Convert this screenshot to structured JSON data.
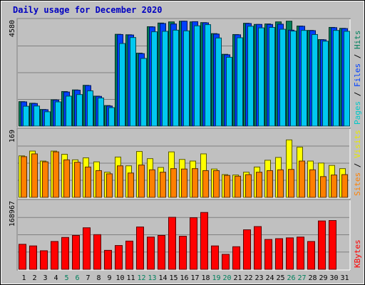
{
  "chart_data": {
    "type": "bar",
    "title": "Daily usage for December 2020",
    "categories": [
      "1",
      "2",
      "3",
      "4",
      "5",
      "6",
      "7",
      "8",
      "9",
      "10",
      "11",
      "12",
      "13",
      "14",
      "15",
      "16",
      "17",
      "18",
      "19",
      "20",
      "21",
      "22",
      "23",
      "24",
      "25",
      "26",
      "27",
      "28",
      "29",
      "30",
      "31"
    ],
    "weekend_days": [
      "5",
      "6",
      "12",
      "13",
      "19",
      "20",
      "26",
      "27"
    ],
    "panels": [
      {
        "name": "requests",
        "ymax_label": "4580",
        "ymax": 4580,
        "right_label": [
          {
            "text": "Pages",
            "color": "#00c8c8"
          },
          {
            "text": " / ",
            "color": "#000000"
          },
          {
            "text": "Files",
            "color": "#0040ff"
          },
          {
            "text": " / ",
            "color": "#000000"
          },
          {
            "text": "Hits",
            "color": "#00805c"
          }
        ],
        "series": [
          {
            "name": "Hits",
            "color": "#00805c",
            "values": [
              1080,
              1010,
              740,
              1160,
              1520,
              1590,
              1790,
              1320,
              910,
              4010,
              3990,
              3190,
              4340,
              4500,
              4550,
              4580,
              4550,
              4520,
              4040,
              3140,
              4000,
              4490,
              4440,
              4460,
              4550,
              4580,
              4370,
              4180,
              3780,
              4310,
              4270
            ]
          },
          {
            "name": "Files",
            "color": "#0040ff",
            "values": [
              1070,
              1000,
              730,
              1150,
              1500,
              1580,
              1780,
              1310,
              890,
              4000,
              3980,
              3170,
              4330,
              4480,
              4460,
              4580,
              4560,
              4510,
              4020,
              3120,
              3990,
              4480,
              4440,
              4440,
              4450,
              4190,
              4360,
              4170,
              3770,
              4300,
              4260
            ]
          },
          {
            "name": "Pages",
            "color": "#00c8f0",
            "values": [
              880,
              890,
              640,
              1070,
              1320,
              1390,
              1550,
              1240,
              820,
              3610,
              3870,
              2960,
              4120,
              4140,
              4190,
              4160,
              4380,
              4430,
              3850,
              3010,
              3860,
              4360,
              4290,
              4310,
              4230,
              4150,
              4180,
              4000,
              3710,
              4180,
              4140
            ]
          }
        ]
      },
      {
        "name": "visits",
        "ymax_label": "169",
        "ymax": 169,
        "right_label": [
          {
            "text": "Sites",
            "color": "#ff8000"
          },
          {
            "text": " / ",
            "color": "#000000"
          },
          {
            "text": "Visits",
            "color": "#e8e800"
          }
        ],
        "series": [
          {
            "name": "Visits",
            "color": "#ffff00",
            "values": [
              105,
              117,
              92,
              117,
              109,
              95,
              100,
              90,
              64,
              102,
              80,
              116,
              98,
              76,
              115,
              96,
              92,
              110,
              72,
              58,
              57,
              64,
              77,
              94,
              101,
              145,
              127,
              92,
              87,
              81,
              73
            ]
          },
          {
            "name": "Sites",
            "color": "#ff8000",
            "values": [
              103,
              110,
              90,
              115,
              95,
              89,
              77,
              68,
              60,
              80,
              62,
              82,
              70,
              64,
              73,
              72,
              73,
              68,
              68,
              56,
              54,
              58,
              64,
              68,
              70,
              71,
              92,
              70,
              53,
              57,
              58
            ]
          }
        ]
      },
      {
        "name": "kbytes",
        "ymax_label": "168967",
        "ymax": 168967,
        "right_label": [
          {
            "text": "KBytes",
            "color": "#ff0000"
          }
        ],
        "series": [
          {
            "name": "KBytes",
            "color": "#ff0000",
            "values": [
              63000,
              59000,
              47000,
              70000,
              80000,
              85000,
              104000,
              87000,
              48000,
              60000,
              71000,
              106000,
              81000,
              85000,
              130000,
              83000,
              129000,
              142000,
              59000,
              38000,
              57000,
              99000,
              107000,
              75000,
              77000,
              79000,
              81000,
              70000,
              121000,
              122000,
              0
            ]
          }
        ]
      }
    ]
  }
}
